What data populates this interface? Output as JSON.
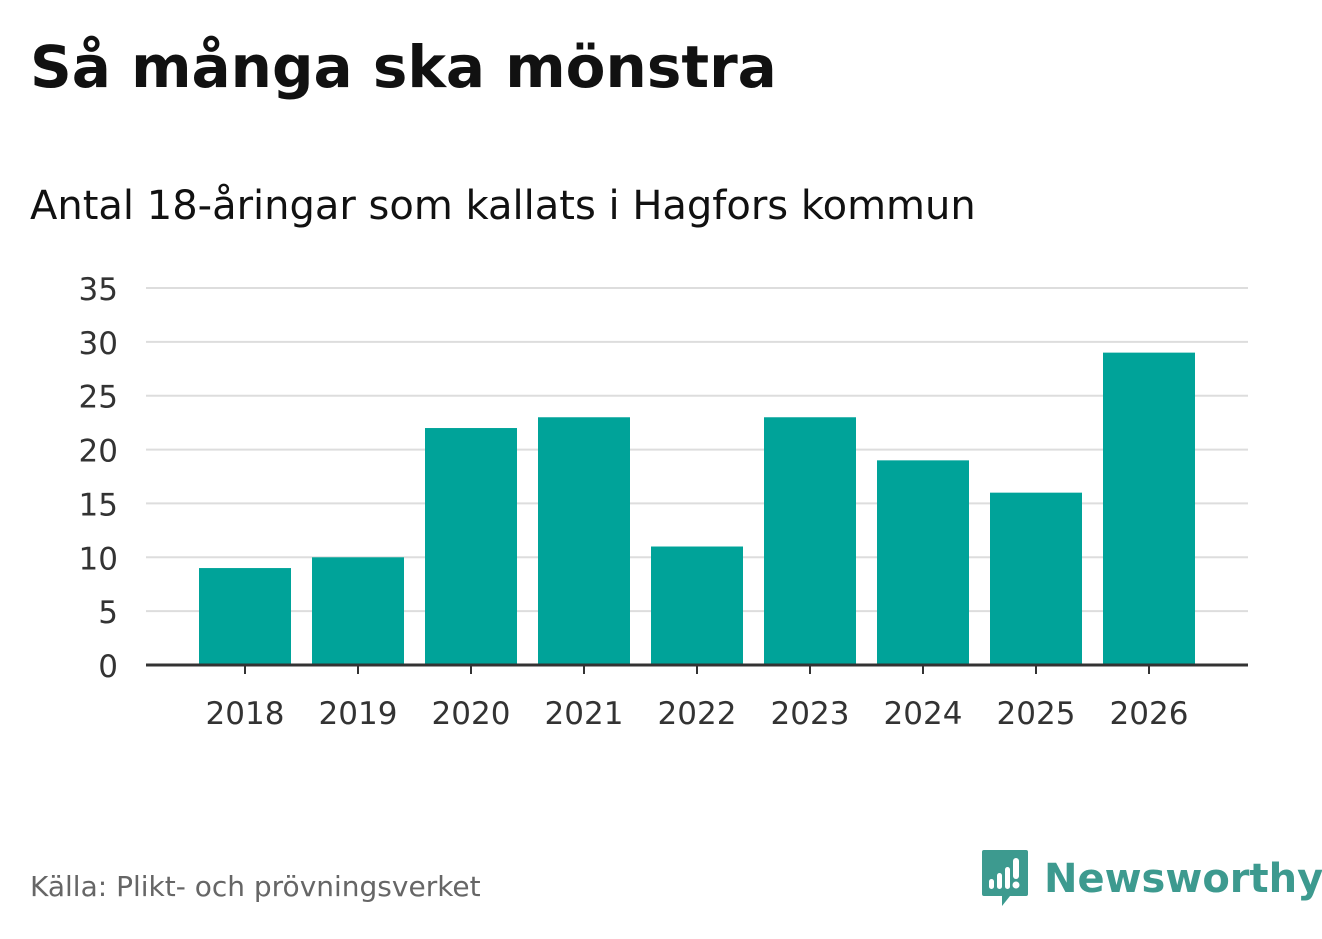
{
  "header": {
    "title": "Så många ska mönstra",
    "subtitle": "Antal 18-åringar som kallats i Hagfors kommun"
  },
  "footer": {
    "source": "Källa: Plikt- och prövningsverket",
    "brand": "Newsworthy",
    "brand_icon": "newsworthy-logo-icon"
  },
  "colors": {
    "bar": "#00a399",
    "grid": "#dddddd",
    "axis": "#333333",
    "brand": "#3d9a8f"
  },
  "chart_data": {
    "type": "bar",
    "title": "Så många ska mönstra",
    "subtitle": "Antal 18-åringar som kallats i Hagfors kommun",
    "xlabel": "",
    "ylabel": "",
    "categories": [
      "2018",
      "2019",
      "2020",
      "2021",
      "2022",
      "2023",
      "2024",
      "2025",
      "2026"
    ],
    "values": [
      9,
      10,
      22,
      23,
      11,
      23,
      19,
      16,
      29
    ],
    "ylim": [
      0,
      35
    ],
    "yticks": [
      0,
      5,
      10,
      15,
      20,
      25,
      30,
      35
    ],
    "grid": true,
    "legend": "none"
  }
}
